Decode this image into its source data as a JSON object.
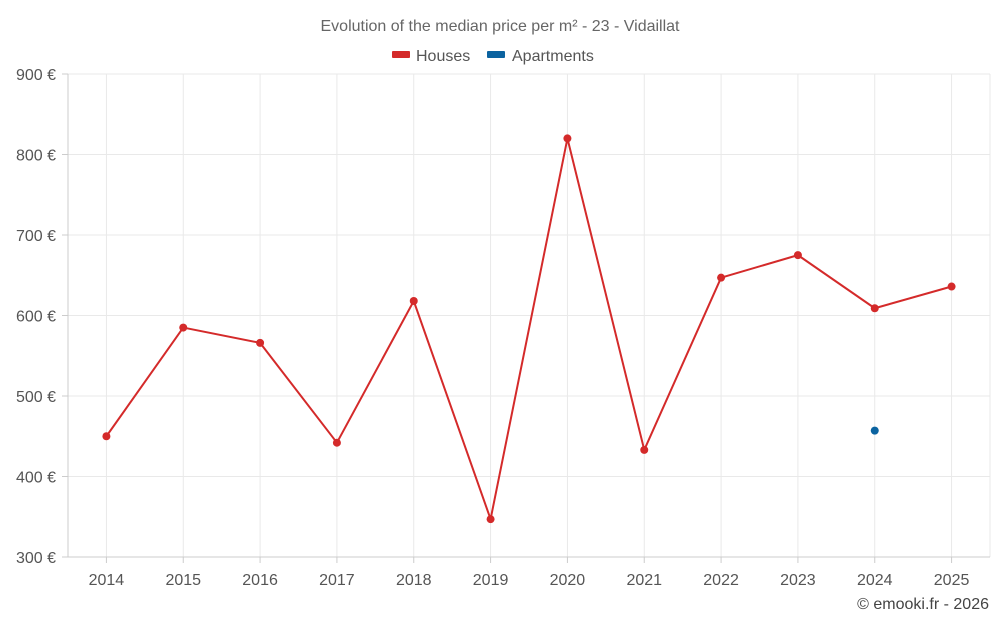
{
  "chart_data": {
    "type": "line",
    "title": "Evolution of the median price per m² - 23 - Vidaillat",
    "categories": [
      "2014",
      "2015",
      "2016",
      "2017",
      "2018",
      "2019",
      "2020",
      "2021",
      "2022",
      "2023",
      "2024",
      "2025"
    ],
    "y_ticks": [
      300,
      400,
      500,
      600,
      700,
      800,
      900
    ],
    "y_tick_labels": [
      "300 €",
      "400 €",
      "500 €",
      "600 €",
      "700 €",
      "800 €",
      "900 €"
    ],
    "ylim": [
      300,
      900
    ],
    "grid": true,
    "legend_position": "top-center",
    "series": [
      {
        "name": "Houses",
        "color": "#d42a2a",
        "values": [
          450,
          585,
          566,
          442,
          618,
          347,
          820,
          433,
          647,
          675,
          609,
          636
        ]
      },
      {
        "name": "Apartments",
        "color": "#0b63a0",
        "values": [
          null,
          null,
          null,
          null,
          null,
          null,
          null,
          null,
          null,
          null,
          457,
          null
        ]
      }
    ]
  },
  "credit": "© emooki.fr - 2026"
}
